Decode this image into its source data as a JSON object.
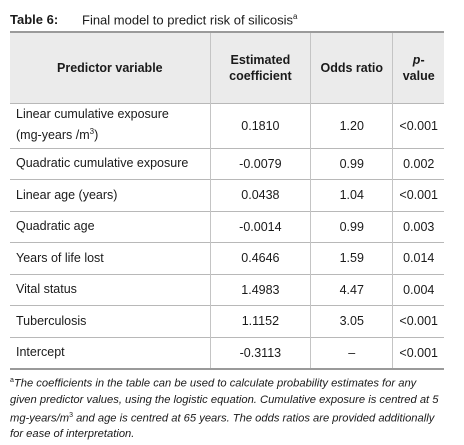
{
  "table": {
    "label": "Table 6:",
    "title": "Final model to predict risk of silicosis",
    "title_marker": "a",
    "headers": {
      "predictor": "Predictor variable",
      "coef_line1": "Estimated",
      "coef_line2": "coefficient",
      "odds": "Odds ratio",
      "p_italic": "p",
      "p_rest": "-value"
    },
    "rows": [
      {
        "name": "Linear cumulative exposure",
        "name_line2": "(mg-years /m",
        "name_sup": "3",
        "name_end": ")",
        "coef": "0.1810",
        "odds": "1.20",
        "p": "<0.001"
      },
      {
        "name": "Quadratic cumulative exposure",
        "coef": "-0.0079",
        "odds": "0.99",
        "p": "0.002"
      },
      {
        "name": "Linear age (years)",
        "coef": "0.0438",
        "odds": "1.04",
        "p": "<0.001"
      },
      {
        "name": "Quadratic age",
        "coef": "-0.0014",
        "odds": "0.99",
        "p": "0.003"
      },
      {
        "name": "Years of life lost",
        "coef": "0.4646",
        "odds": "1.59",
        "p": "0.014"
      },
      {
        "name": "Vital status",
        "coef": "1.4983",
        "odds": "4.47",
        "p": "0.004"
      },
      {
        "name": "Tuberculosis",
        "coef": "1.1152",
        "odds": "3.05",
        "p": "<0.001"
      },
      {
        "name": "Intercept",
        "coef": "-0.3113",
        "odds": "–",
        "p": "<0.001"
      }
    ]
  },
  "footnote": {
    "marker": "a",
    "part1": "The coefficients in the table can be used to calculate probability estimates for any given predictor values, using the logistic equation. Cumulative exposure is centred at 5 mg-years/m",
    "sup": "3",
    "part2": " and age is centred at 65 years. The odds ratios are provided additionally for ease of interpretation."
  },
  "colors": {
    "header_bg": "#ebebeb",
    "rule": "#9a9a9a"
  }
}
